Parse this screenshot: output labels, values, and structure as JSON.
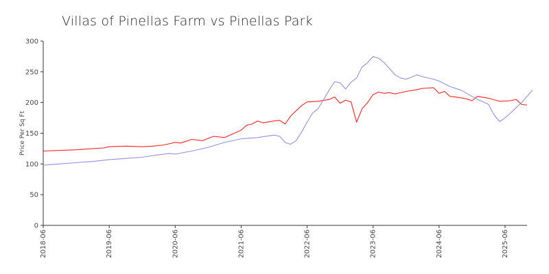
{
  "chart_data": {
    "type": "line",
    "title": "Villas of Pinellas Farm vs Pinellas Park",
    "xlabel": "",
    "ylabel": "Price Per Sq Ft",
    "ylim": [
      0,
      300
    ],
    "yticks": [
      0,
      50,
      100,
      150,
      200,
      250,
      300
    ],
    "xlim": [
      "2018-06",
      "2025-10"
    ],
    "xticks": [
      "2018-06",
      "2019-06",
      "2020-06",
      "2021-06",
      "2022-06",
      "2023-06",
      "2024-06",
      "2025-06"
    ],
    "grid": false,
    "legend": "none",
    "series": [
      {
        "color": "#ff2020",
        "points": [
          [
            "2018-06",
            121
          ],
          [
            "2018-09",
            122
          ],
          [
            "2018-12",
            123
          ],
          [
            "2019-03",
            125
          ],
          [
            "2019-05",
            126
          ],
          [
            "2019-06",
            128
          ],
          [
            "2019-09",
            129
          ],
          [
            "2019-12",
            128
          ],
          [
            "2020-02",
            129
          ],
          [
            "2020-04",
            131
          ],
          [
            "2020-06",
            135
          ],
          [
            "2020-07",
            134
          ],
          [
            "2020-09",
            140
          ],
          [
            "2020-11",
            138
          ],
          [
            "2021-01",
            145
          ],
          [
            "2021-03",
            143
          ],
          [
            "2021-05",
            151
          ],
          [
            "2021-06",
            155
          ],
          [
            "2021-07",
            163
          ],
          [
            "2021-08",
            165
          ],
          [
            "2021-09",
            170
          ],
          [
            "2021-10",
            167
          ],
          [
            "2021-12",
            170
          ],
          [
            "2022-01",
            171
          ],
          [
            "2022-02",
            165
          ],
          [
            "2022-03",
            178
          ],
          [
            "2022-05",
            195
          ],
          [
            "2022-06",
            201
          ],
          [
            "2022-08",
            202
          ],
          [
            "2022-10",
            205
          ],
          [
            "2022-11",
            209
          ],
          [
            "2022-12",
            199
          ],
          [
            "2023-01",
            204
          ],
          [
            "2023-02",
            201
          ],
          [
            "2023-03",
            168
          ],
          [
            "2023-04",
            190
          ],
          [
            "2023-05",
            200
          ],
          [
            "2023-06",
            213
          ],
          [
            "2023-07",
            217
          ],
          [
            "2023-08",
            215
          ],
          [
            "2023-09",
            216
          ],
          [
            "2023-10",
            214
          ],
          [
            "2023-12",
            218
          ],
          [
            "2024-02",
            221
          ],
          [
            "2024-03",
            223
          ],
          [
            "2024-05",
            224
          ],
          [
            "2024-06",
            215
          ],
          [
            "2024-07",
            218
          ],
          [
            "2024-08",
            210
          ],
          [
            "2024-09",
            209
          ],
          [
            "2024-11",
            206
          ],
          [
            "2024-12",
            203
          ],
          [
            "2025-01",
            210
          ],
          [
            "2025-03",
            207
          ],
          [
            "2025-05",
            202
          ],
          [
            "2025-07",
            203
          ],
          [
            "2025-08",
            205
          ],
          [
            "2025-09",
            197
          ],
          [
            "2025-10",
            196
          ]
        ]
      },
      {
        "color": "#9090e8",
        "points": [
          [
            "2018-06",
            98
          ],
          [
            "2018-09",
            100
          ],
          [
            "2018-12",
            102
          ],
          [
            "2019-03",
            104
          ],
          [
            "2019-06",
            107
          ],
          [
            "2019-09",
            109
          ],
          [
            "2019-12",
            111
          ],
          [
            "2020-03",
            115
          ],
          [
            "2020-05",
            117
          ],
          [
            "2020-06",
            116
          ],
          [
            "2020-09",
            121
          ],
          [
            "2020-12",
            127
          ],
          [
            "2021-03",
            135
          ],
          [
            "2021-06",
            141
          ],
          [
            "2021-09",
            143
          ],
          [
            "2021-12",
            147
          ],
          [
            "2022-01",
            145
          ],
          [
            "2022-02",
            135
          ],
          [
            "2022-03",
            132
          ],
          [
            "2022-04",
            138
          ],
          [
            "2022-05",
            152
          ],
          [
            "2022-06",
            168
          ],
          [
            "2022-07",
            183
          ],
          [
            "2022-08",
            190
          ],
          [
            "2022-09",
            205
          ],
          [
            "2022-10",
            220
          ],
          [
            "2022-11",
            234
          ],
          [
            "2022-12",
            232
          ],
          [
            "2023-01",
            222
          ],
          [
            "2023-02",
            233
          ],
          [
            "2023-03",
            240
          ],
          [
            "2023-04",
            258
          ],
          [
            "2023-05",
            265
          ],
          [
            "2023-06",
            275
          ],
          [
            "2023-07",
            272
          ],
          [
            "2023-08",
            265
          ],
          [
            "2023-09",
            255
          ],
          [
            "2023-10",
            245
          ],
          [
            "2023-11",
            240
          ],
          [
            "2023-12",
            238
          ],
          [
            "2024-02",
            245
          ],
          [
            "2024-03",
            242
          ],
          [
            "2024-05",
            238
          ],
          [
            "2024-06",
            235
          ],
          [
            "2024-08",
            226
          ],
          [
            "2024-10",
            220
          ],
          [
            "2024-12",
            210
          ],
          [
            "2025-01",
            205
          ],
          [
            "2025-03",
            197
          ],
          [
            "2025-04",
            180
          ],
          [
            "2025-05",
            169
          ],
          [
            "2025-06",
            175
          ],
          [
            "2025-07",
            183
          ],
          [
            "2025-09",
            200
          ],
          [
            "2025-11",
            220
          ]
        ]
      }
    ]
  }
}
